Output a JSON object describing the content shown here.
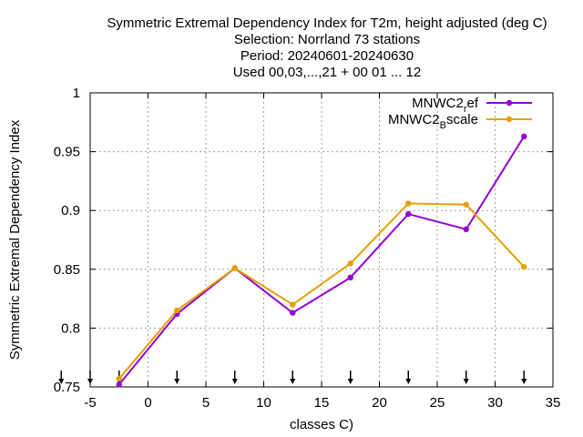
{
  "chart_data": {
    "type": "line",
    "title_lines": [
      "Symmetric Extremal Dependency Index  for T2m, height adjusted (deg C)",
      "Selection: Norrland     73 stations",
      "Period: 20240601-20240630",
      "Used 00,03,...,21 + 00 01 ... 12"
    ],
    "xlabel": "classes C)",
    "ylabel": "Symmetric Extremal Dependency Index",
    "xlim": [
      -5,
      35
    ],
    "ylim": [
      0.75,
      1
    ],
    "xticks": [
      -5,
      0,
      5,
      10,
      15,
      20,
      25,
      30,
      35
    ],
    "yticks": [
      0.75,
      0.8,
      0.85,
      0.9,
      0.95,
      1
    ],
    "xtick_labels": [
      "-5",
      "0",
      "5",
      "10",
      "15",
      "20",
      "25",
      "30",
      "35"
    ],
    "ytick_labels": [
      "0.75",
      "0.8",
      "0.85",
      "0.9",
      "0.95",
      "1"
    ],
    "grid": true,
    "legend_position": "top-right",
    "arrow_marker_x": [
      -7.5,
      -5,
      -2.5,
      2.5,
      7.5,
      12.5,
      17.5,
      22.5,
      27.5,
      32.5
    ],
    "x": [
      -2.5,
      2.5,
      7.5,
      12.5,
      17.5,
      22.5,
      27.5,
      32.5
    ],
    "series": [
      {
        "legend_main": "MNWC2",
        "legend_sub": "r",
        "legend_rest": "ef",
        "color": "#9400d3",
        "values": [
          0.752,
          0.812,
          0.851,
          0.813,
          0.843,
          0.897,
          0.884,
          0.963
        ]
      },
      {
        "legend_main": "MNWC2",
        "legend_sub": "B",
        "legend_rest": "scale",
        "color": "#e69f00",
        "values": [
          0.757,
          0.815,
          0.851,
          0.82,
          0.855,
          0.906,
          0.905,
          0.852
        ]
      }
    ]
  }
}
